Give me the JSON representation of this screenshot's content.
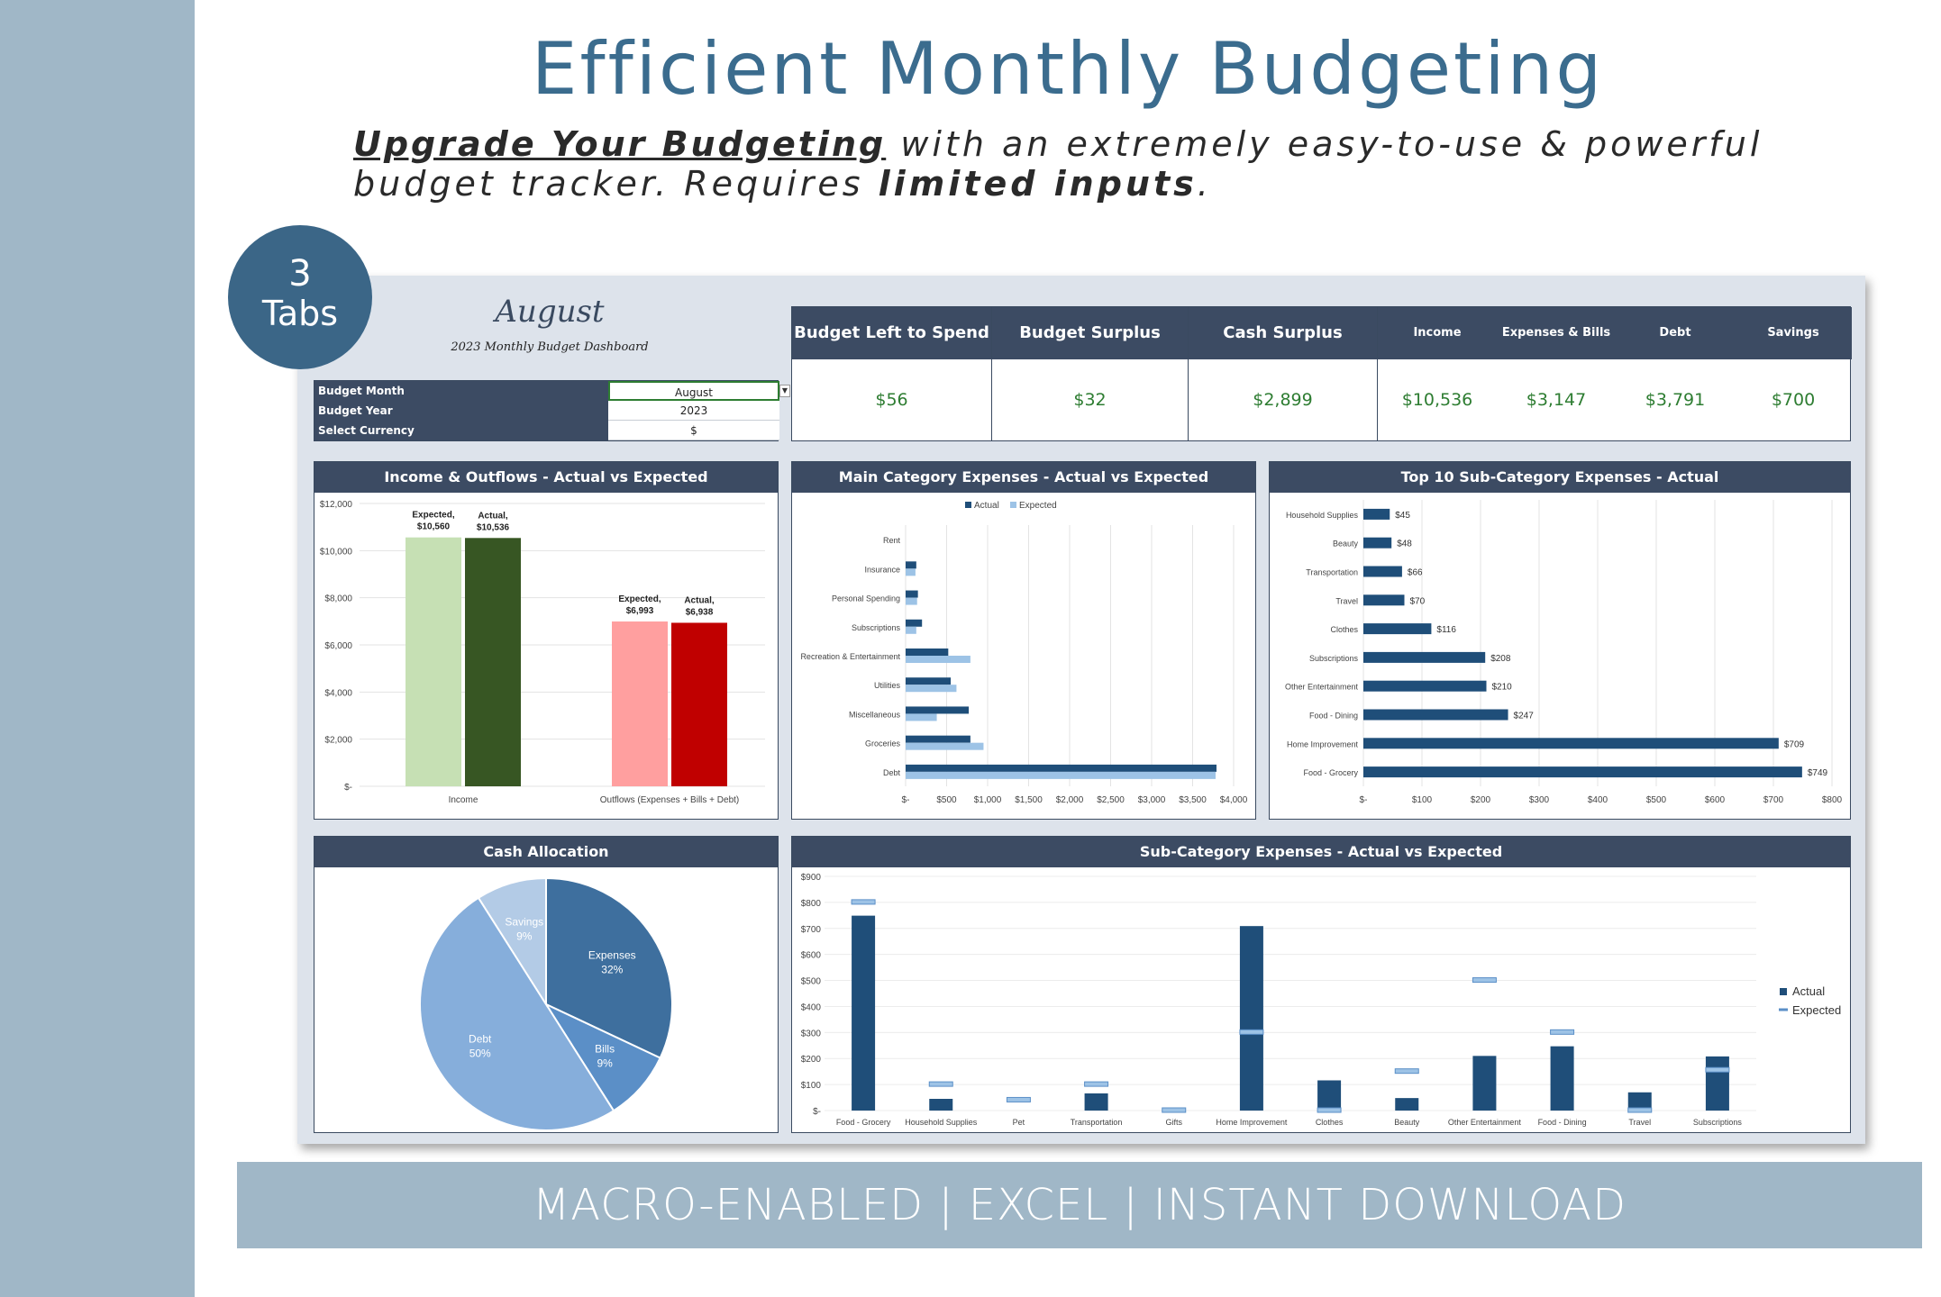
{
  "hero": {
    "title": "Efficient Monthly Budgeting",
    "sub_underlined": "Upgrade Your Budgeting",
    "sub_mid": " with an extremely easy-to-use & powerful budget tracker. Requires ",
    "sub_bold": "limited inputs",
    "sub_end": "."
  },
  "badge": {
    "number": "3",
    "label": "Tabs"
  },
  "dashboard": {
    "month": "August",
    "subtitle": "2023 Monthly Budget Dashboard",
    "settings": [
      {
        "label": "Budget Month",
        "value": "August"
      },
      {
        "label": "Budget Year",
        "value": "2023"
      },
      {
        "label": "Select Currency",
        "value": "$"
      }
    ],
    "kpis": [
      {
        "label": "Budget Left to Spend",
        "value": "$56"
      },
      {
        "label": "Budget Surplus",
        "value": "$32"
      },
      {
        "label": "Cash Surplus",
        "value": "$2,899"
      },
      {
        "label": "Income",
        "value": "$10,536"
      },
      {
        "label": "Expenses & Bills",
        "value": "$3,147"
      },
      {
        "label": "Debt",
        "value": "$3,791"
      },
      {
        "label": "Savings",
        "value": "$700"
      }
    ],
    "colors": {
      "header": "#3c4b63",
      "positive": "#2e7d32",
      "actual": "#1f4e79",
      "expected": "#9dc3e6"
    }
  },
  "panels": {
    "income_outflows": "Income & Outflows - Actual vs Expected",
    "main_category": "Main Category Expenses - Actual vs Expected",
    "top10": "Top 10 Sub-Category Expenses - Actual",
    "cash_allocation": "Cash Allocation",
    "subcategory": "Sub-Category Expenses - Actual vs Expected"
  },
  "footer": "MACRO-ENABLED | EXCEL | INSTANT DOWNLOAD",
  "chart_data": [
    {
      "type": "bar",
      "title": "Income & Outflows - Actual vs Expected",
      "categories": [
        "Income",
        "Outflows (Expenses + Bills + Debt)"
      ],
      "series": [
        {
          "name": "Expected",
          "values": [
            10560,
            6993
          ],
          "labels": [
            "$10,560",
            "$6,993"
          ]
        },
        {
          "name": "Actual",
          "values": [
            10536,
            6938
          ],
          "labels": [
            "$10,536",
            "$6,938"
          ]
        }
      ],
      "bar_colors": [
        [
          "#c6e0b4",
          "#375623"
        ],
        [
          "#ff9f9f",
          "#c00000"
        ]
      ],
      "ylim": [
        0,
        12000
      ],
      "yticks": [
        "$-",
        "$2,000",
        "$4,000",
        "$6,000",
        "$8,000",
        "$10,000",
        "$12,000"
      ]
    },
    {
      "type": "bar",
      "orientation": "horizontal",
      "title": "Main Category Expenses - Actual vs Expected",
      "categories": [
        "Rent",
        "Insurance",
        "Personal Spending",
        "Subscriptions",
        "Recreation & Entertainment",
        "Utilities",
        "Miscellaneous",
        "Groceries",
        "Debt"
      ],
      "series": [
        {
          "name": "Actual",
          "values": [
            0,
            130,
            150,
            200,
            520,
            550,
            770,
            790,
            3791
          ]
        },
        {
          "name": "Expected",
          "values": [
            0,
            120,
            140,
            130,
            790,
            620,
            380,
            950,
            3780
          ]
        }
      ],
      "xlim": [
        0,
        4000
      ],
      "xticks": [
        "$-",
        "$500",
        "$1,000",
        "$1,500",
        "$2,000",
        "$2,500",
        "$3,000",
        "$3,500",
        "$4,000"
      ],
      "legend": "top"
    },
    {
      "type": "bar",
      "orientation": "horizontal",
      "title": "Top 10 Sub-Category Expenses - Actual",
      "categories": [
        "Household Supplies",
        "Beauty",
        "Transportation",
        "Travel",
        "Clothes",
        "Subscriptions",
        "Other Entertainment",
        "Food - Dining",
        "Home Improvement",
        "Food - Grocery"
      ],
      "values": [
        45,
        48,
        66,
        70,
        116,
        208,
        210,
        247,
        709,
        749
      ],
      "labels": [
        "$45",
        "$48",
        "$66",
        "$70",
        "$116",
        "$208",
        "$210",
        "$247",
        "$709",
        "$749"
      ],
      "xlim": [
        0,
        800
      ],
      "xticks": [
        "$-",
        "$100",
        "$200",
        "$300",
        "$400",
        "$500",
        "$600",
        "$700",
        "$800"
      ]
    },
    {
      "type": "pie",
      "title": "Cash Allocation",
      "slices": [
        {
          "name": "Expenses",
          "value": 32,
          "label": "32%"
        },
        {
          "name": "Bills",
          "value": 9,
          "label": "9%"
        },
        {
          "name": "Debt",
          "value": 50,
          "label": "50%"
        },
        {
          "name": "Savings",
          "value": 9,
          "label": "9%"
        }
      ],
      "colors": [
        "#3e6f9e",
        "#5b8fc7",
        "#86aedb",
        "#b3cbe6"
      ]
    },
    {
      "type": "bar",
      "title": "Sub-Category Expenses - Actual vs Expected",
      "categories": [
        "Food - Grocery",
        "Household Supplies",
        "Pet",
        "Transportation",
        "Gifts",
        "Home Improvement",
        "Clothes",
        "Beauty",
        "Other Entertainment",
        "Food - Dining",
        "Travel",
        "Subscriptions"
      ],
      "series": [
        {
          "name": "Actual",
          "values": [
            749,
            45,
            0,
            66,
            0,
            709,
            116,
            48,
            210,
            247,
            70,
            208
          ]
        },
        {
          "name": "Expected",
          "values": [
            800,
            100,
            40,
            100,
            0,
            300,
            0,
            150,
            500,
            300,
            0,
            155
          ]
        }
      ],
      "ylim": [
        0,
        900
      ],
      "yticks": [
        "$-",
        "$100",
        "$200",
        "$300",
        "$400",
        "$500",
        "$600",
        "$700",
        "$800",
        "$900"
      ],
      "legend": "right"
    }
  ]
}
